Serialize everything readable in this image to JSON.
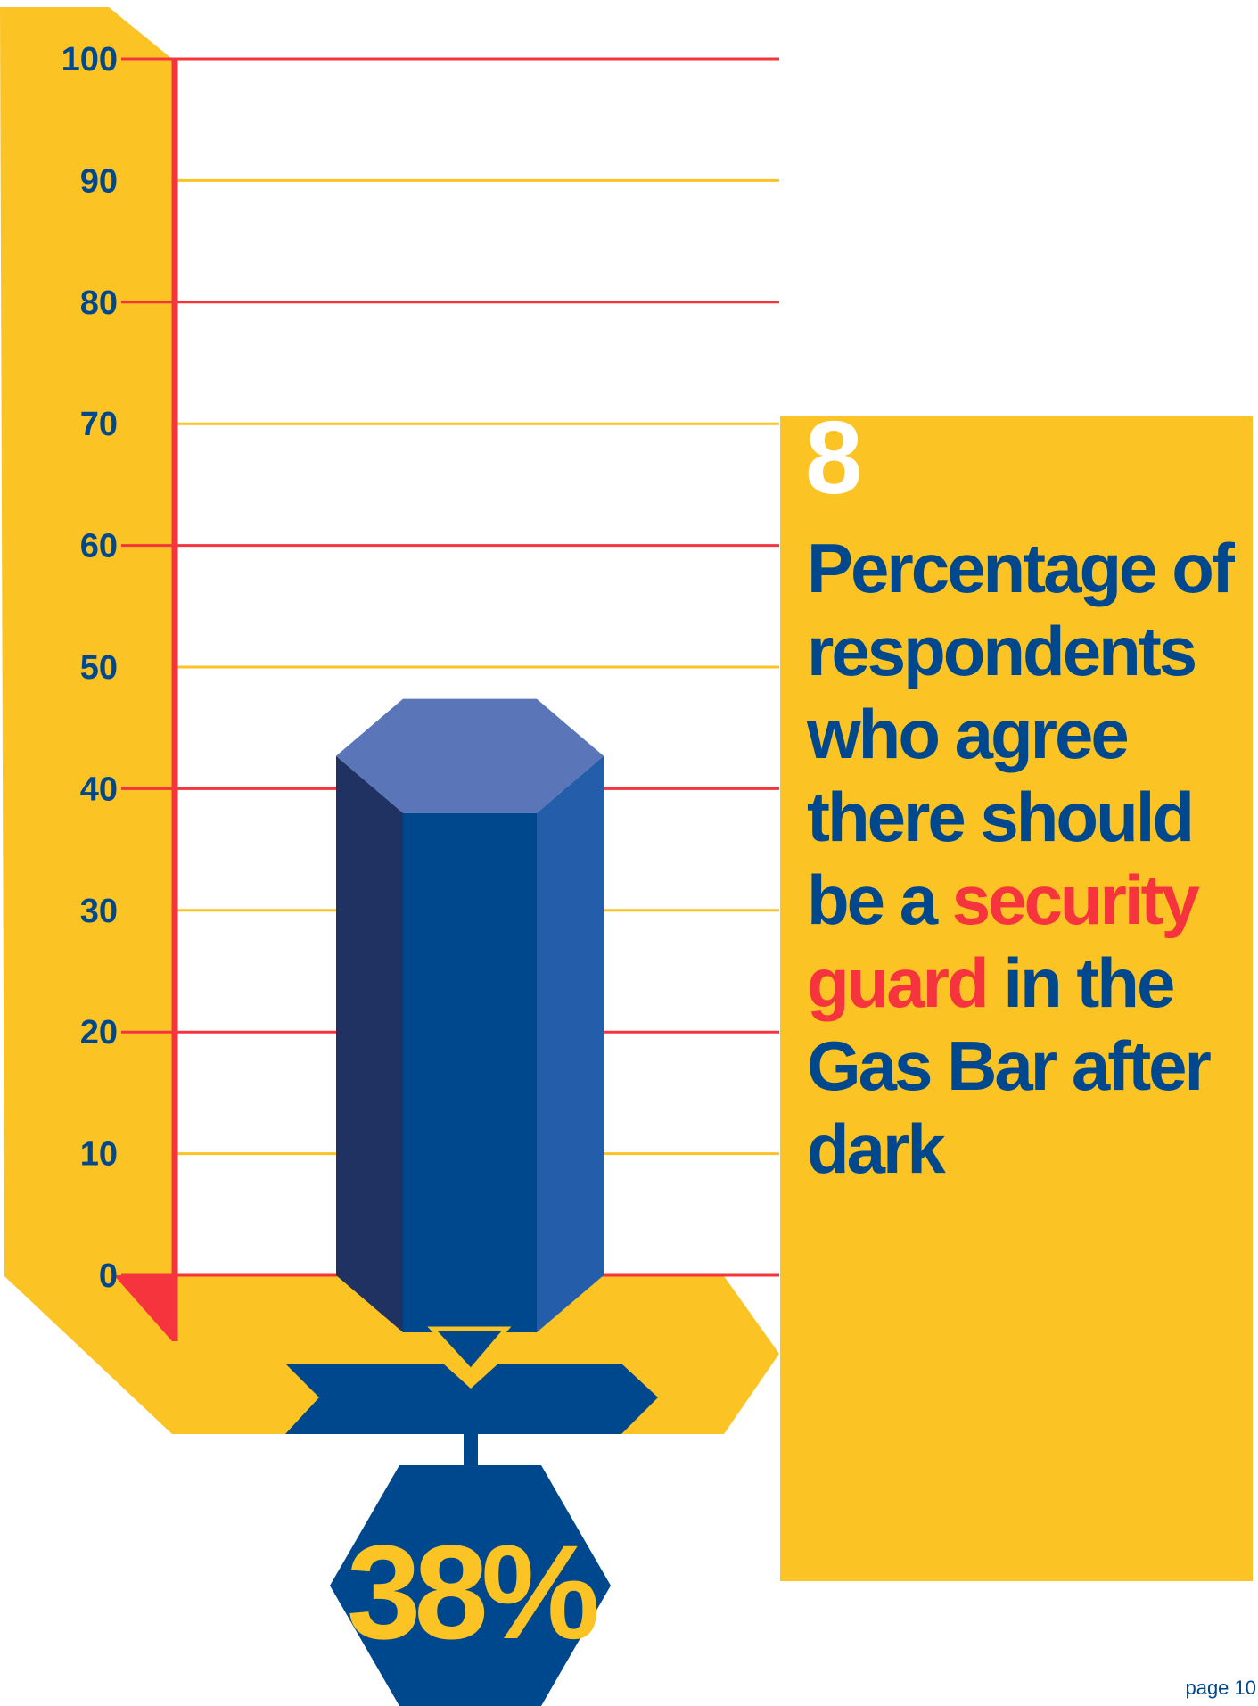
{
  "colors": {
    "yellow": "#fcc325",
    "red": "#f5343e",
    "navy": "#00488d",
    "bar_front": "#00488d",
    "bar_left": "#203262",
    "bar_right": "#245eaa",
    "bar_top": "#5a76b8",
    "white": "#ffffff"
  },
  "chart_data": {
    "type": "bar",
    "categories": [
      ""
    ],
    "values": [
      38
    ],
    "value_label": "38%",
    "ylim": [
      0,
      100
    ],
    "yticks": [
      0,
      10,
      20,
      30,
      40,
      50,
      60,
      70,
      80,
      90,
      100
    ],
    "ytick_labels": [
      "0",
      "10",
      "20",
      "30",
      "40",
      "50",
      "60",
      "70",
      "80",
      "90",
      "100"
    ],
    "grid": true,
    "gridline_colors": [
      "red",
      "yellow",
      "red",
      "yellow",
      "red",
      "yellow",
      "red",
      "yellow",
      "red",
      "yellow",
      "red"
    ]
  },
  "panel": {
    "number": "8",
    "text_before": "Percentage of respondents who agree there should be a ",
    "text_highlight": "security guard",
    "text_after": " in the Gas Bar after dark"
  },
  "footer": {
    "page_label": "page 10"
  }
}
